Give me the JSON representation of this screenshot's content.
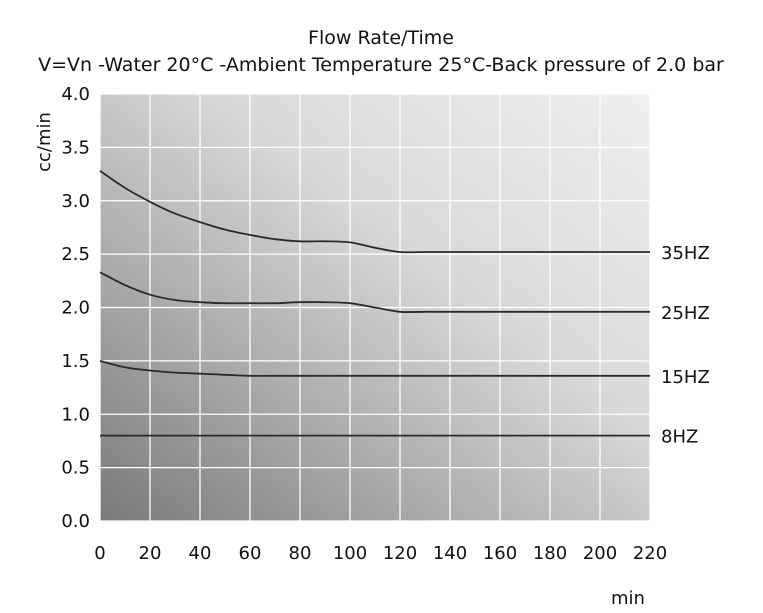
{
  "chart_data": {
    "type": "line",
    "title": "Flow Rate/Time",
    "subtitle": "V=Vn -Water 20°C -Ambient Temperature 25°C-Back pressure of 2.0 bar",
    "xlabel": "min",
    "ylabel": "cc/min",
    "xlim": [
      0,
      220
    ],
    "ylim": [
      0,
      4.0
    ],
    "xticks": [
      "0",
      "20",
      "40",
      "60",
      "80",
      "100",
      "120",
      "140",
      "160",
      "180",
      "200",
      "220"
    ],
    "yticks": [
      "0.0",
      "0.5",
      "1.0",
      "1.5",
      "2.0",
      "2.5",
      "3.0",
      "3.5",
      "4.0"
    ],
    "grid": true,
    "x": [
      0,
      10,
      20,
      30,
      40,
      50,
      60,
      70,
      80,
      90,
      100,
      110,
      120,
      130,
      140,
      160,
      180,
      200,
      220
    ],
    "series": [
      {
        "name": "35HZ",
        "values": [
          3.28,
          3.12,
          2.99,
          2.88,
          2.8,
          2.73,
          2.68,
          2.64,
          2.62,
          2.62,
          2.61,
          2.56,
          2.52,
          2.52,
          2.52,
          2.52,
          2.52,
          2.52,
          2.52
        ]
      },
      {
        "name": "25HZ",
        "values": [
          2.33,
          2.21,
          2.12,
          2.07,
          2.05,
          2.04,
          2.04,
          2.04,
          2.05,
          2.05,
          2.04,
          2.0,
          1.96,
          1.96,
          1.96,
          1.96,
          1.96,
          1.96,
          1.96
        ]
      },
      {
        "name": "15HZ",
        "values": [
          1.5,
          1.44,
          1.41,
          1.39,
          1.38,
          1.37,
          1.36,
          1.36,
          1.36,
          1.36,
          1.36,
          1.36,
          1.36,
          1.36,
          1.36,
          1.36,
          1.36,
          1.36,
          1.36
        ]
      },
      {
        "name": "8HZ",
        "values": [
          0.8,
          0.8,
          0.8,
          0.8,
          0.8,
          0.8,
          0.8,
          0.8,
          0.8,
          0.8,
          0.8,
          0.8,
          0.8,
          0.8,
          0.8,
          0.8,
          0.8,
          0.8,
          0.8
        ]
      }
    ],
    "colors": {
      "line": "#2b2b2b",
      "grid": "#ffffff",
      "bg_dark": "#7a7a7a",
      "bg_light": "#f0f0f0"
    }
  }
}
